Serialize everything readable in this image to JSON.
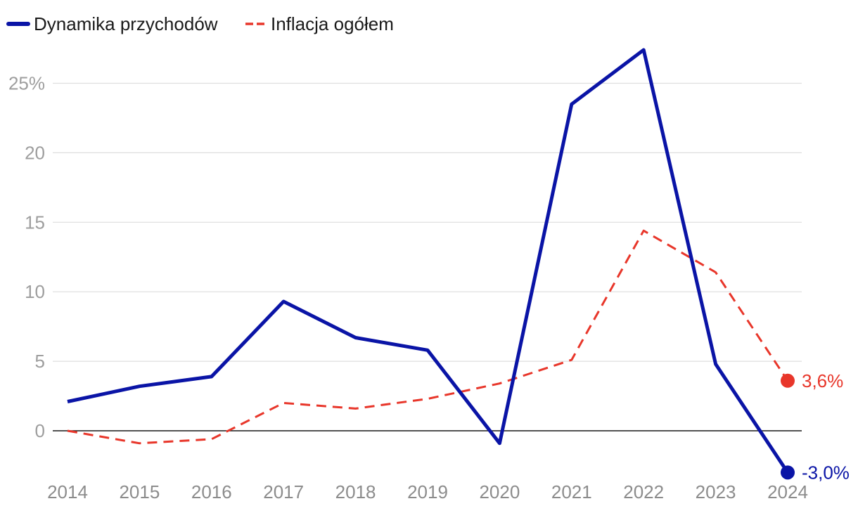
{
  "chart_data": {
    "type": "line",
    "title": "",
    "xlabel": "",
    "ylabel": "",
    "categories": [
      "2014",
      "2015",
      "2016",
      "2017",
      "2018",
      "2019",
      "2020",
      "2021",
      "2022",
      "2023",
      "2024"
    ],
    "series": [
      {
        "name": "Dynamika przychodów",
        "color": "#0a14a6",
        "style": "solid",
        "values": [
          2.1,
          3.2,
          3.9,
          9.3,
          6.7,
          5.8,
          -0.9,
          23.5,
          27.4,
          4.8,
          -3.0
        ]
      },
      {
        "name": "Inflacja ogółem",
        "color": "#e8362a",
        "style": "dashed",
        "values": [
          0.0,
          -0.9,
          -0.6,
          2.0,
          1.6,
          2.3,
          3.4,
          5.1,
          14.4,
          11.4,
          3.6
        ]
      }
    ],
    "end_labels": [
      "-3,0%",
      "3,6%"
    ],
    "ylim": [
      -3.5,
      28
    ],
    "y_ticks": [
      {
        "value": 0,
        "label": "0"
      },
      {
        "value": 5,
        "label": "5"
      },
      {
        "value": 10,
        "label": "10"
      },
      {
        "value": 15,
        "label": "15"
      },
      {
        "value": 20,
        "label": "20"
      },
      {
        "value": 25,
        "label": "25%"
      }
    ],
    "grid": true,
    "zero_line": true,
    "legend_position": "top-left",
    "colors": {
      "grid": "#dedede",
      "zero_line": "#1a1a1a",
      "tick_text": "#9e9e9e"
    }
  }
}
